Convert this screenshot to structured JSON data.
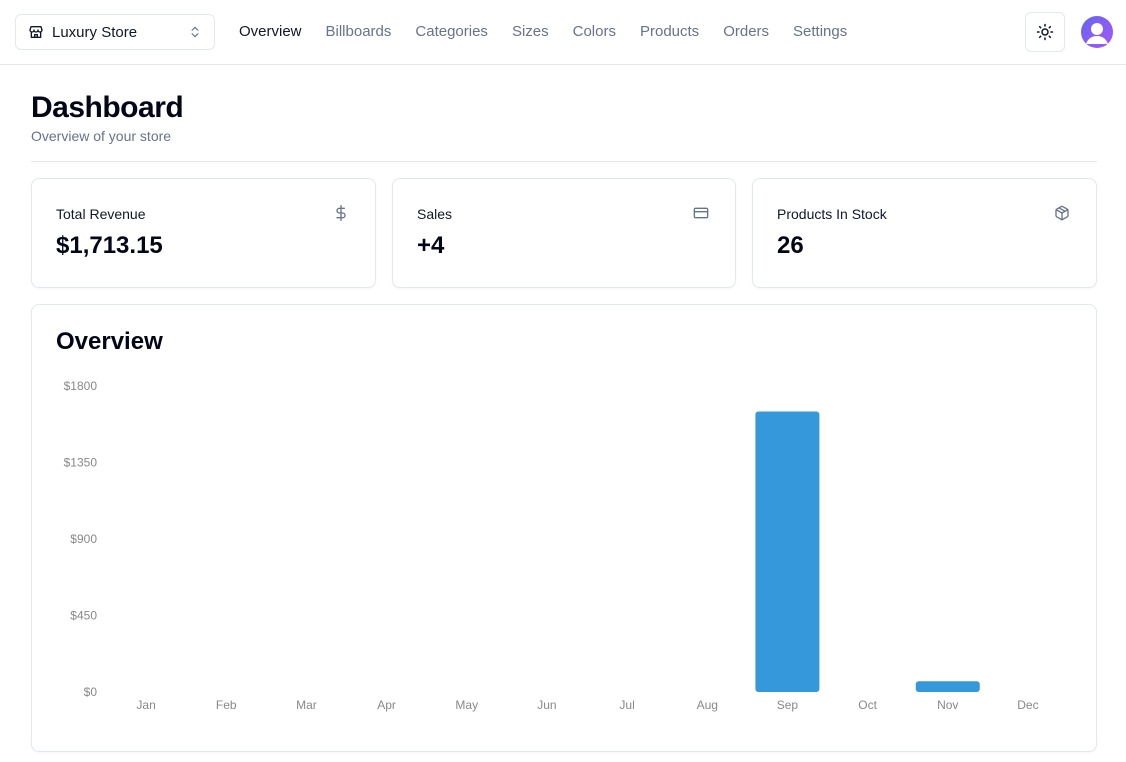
{
  "store_switcher": {
    "name": "Luxury Store",
    "icon": "store-icon",
    "chevron": "chevrons-up-down-icon"
  },
  "nav": {
    "links": [
      {
        "label": "Overview",
        "active": true
      },
      {
        "label": "Billboards",
        "active": false
      },
      {
        "label": "Categories",
        "active": false
      },
      {
        "label": "Sizes",
        "active": false
      },
      {
        "label": "Colors",
        "active": false
      },
      {
        "label": "Products",
        "active": false
      },
      {
        "label": "Orders",
        "active": false
      },
      {
        "label": "Settings",
        "active": false
      }
    ],
    "theme_icon": "sun-icon",
    "avatar_icon": "user-avatar-icon"
  },
  "header": {
    "title": "Dashboard",
    "subtitle": "Overview of your store"
  },
  "stats": [
    {
      "label": "Total Revenue",
      "value": "$1,713.15",
      "icon": "dollar-sign-icon"
    },
    {
      "label": "Sales",
      "value": "+4",
      "icon": "credit-card-icon"
    },
    {
      "label": "Products In Stock",
      "value": "26",
      "icon": "package-icon"
    }
  ],
  "overview": {
    "title": "Overview"
  },
  "colors": {
    "bar": "#3498db",
    "accent_text": "#0f172a",
    "muted_text": "#64748b"
  },
  "chart_data": {
    "type": "bar",
    "categories": [
      "Jan",
      "Feb",
      "Mar",
      "Apr",
      "May",
      "Jun",
      "Jul",
      "Aug",
      "Sep",
      "Oct",
      "Nov",
      "Dec"
    ],
    "values": [
      0,
      0,
      0,
      0,
      0,
      0,
      0,
      0,
      1650,
      0,
      63.15,
      0
    ],
    "ylim": [
      0,
      1800
    ],
    "yticks": [
      0,
      450,
      900,
      1350,
      1800
    ],
    "ytick_labels": [
      "$0",
      "$450",
      "$900",
      "$1350",
      "$1800"
    ],
    "grid": false,
    "xlabel": "",
    "ylabel": ""
  }
}
